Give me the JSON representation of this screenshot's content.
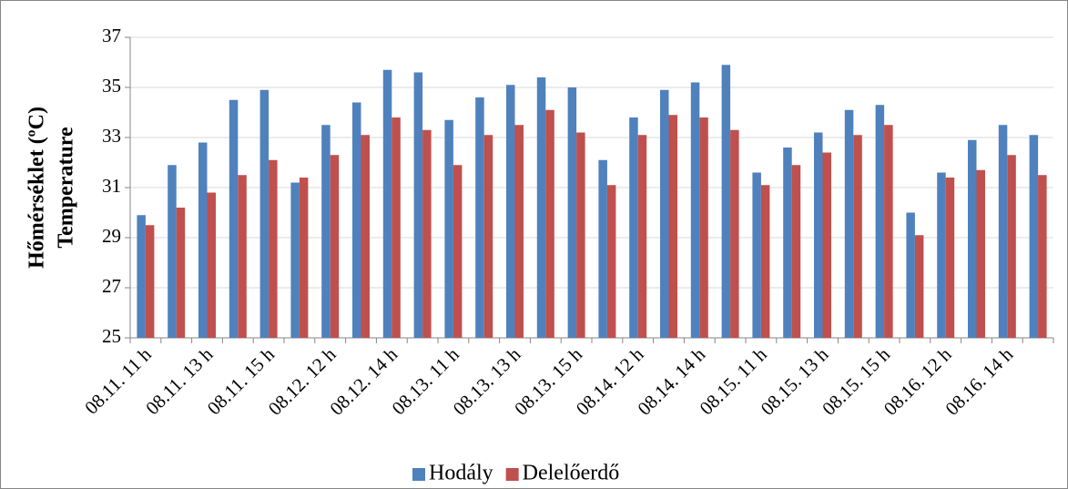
{
  "chart_data": {
    "type": "bar",
    "ylabel_lines": [
      "Hőmérséklet (ºC)",
      "Temperature"
    ],
    "categories": [
      "08.11. 11 h",
      null,
      "08.11. 13 h",
      null,
      "08.11. 15 h",
      null,
      "08.12. 12 h",
      null,
      "08.12. 14 h",
      null,
      "08.13. 11 h",
      null,
      "08.13. 13 h",
      null,
      "08.13. 15 h",
      null,
      "08.14. 12 h",
      null,
      "08.14. 14 h",
      null,
      "08.15. 11 h",
      null,
      "08.15. 13 h",
      null,
      "08.15. 15 h",
      null,
      "08.16. 12 h",
      null,
      "08.16. 14 h",
      null
    ],
    "series": [
      {
        "name": "Hodály",
        "color": "#4f81bd",
        "values": [
          29.9,
          31.9,
          32.8,
          34.5,
          34.9,
          31.2,
          33.5,
          34.4,
          35.7,
          35.6,
          33.7,
          34.6,
          35.1,
          35.4,
          35.0,
          32.1,
          33.8,
          34.9,
          35.2,
          35.9,
          31.6,
          32.6,
          33.2,
          34.1,
          34.3,
          30.0,
          31.6,
          32.9,
          33.5,
          33.1
        ]
      },
      {
        "name": "Delelőerdő",
        "color": "#c0504d",
        "values": [
          29.5,
          30.2,
          30.8,
          31.5,
          32.1,
          31.4,
          32.3,
          33.1,
          33.8,
          33.3,
          31.9,
          33.1,
          33.5,
          34.1,
          33.2,
          31.1,
          33.1,
          33.9,
          33.8,
          33.3,
          31.1,
          31.9,
          32.4,
          33.1,
          33.5,
          29.1,
          31.4,
          31.7,
          32.3,
          31.5
        ]
      }
    ],
    "ylim": [
      25,
      37
    ],
    "yticks": [
      25,
      27,
      29,
      31,
      33,
      35,
      37
    ],
    "grid": true,
    "legend": "bottom"
  }
}
